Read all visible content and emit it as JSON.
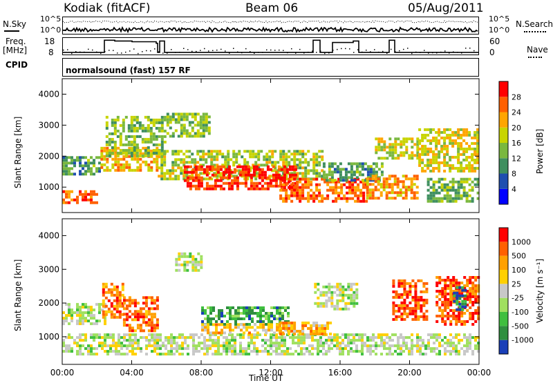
{
  "header": {
    "station": "Kodiak (fitACF)",
    "beam": "Beam 06",
    "date": "05/Aug/2011"
  },
  "summary_panels": {
    "nsky_label": "N.Sky",
    "nsearch_label": "N.Search",
    "nsky_ticks": [
      "10^5",
      "10^0"
    ],
    "nsearch_ticks": [
      "10^5",
      "10^0"
    ],
    "freq_label": "Freq.",
    "freq_unit": "[MHz]",
    "freq_ticks": [
      "18",
      "8"
    ],
    "nave_label": "Nave",
    "nave_ticks": [
      "60",
      "0"
    ],
    "cpid_label": "CPID",
    "cpid_value": "normalsound (fast) 157 RF"
  },
  "chart_data": [
    {
      "type": "heatmap",
      "name": "power",
      "ylabel": "Slant Range [km]",
      "ylim": [
        180,
        4500
      ],
      "yticks": [
        1000,
        2000,
        3000,
        4000
      ],
      "xlim": [
        0,
        24
      ],
      "xticks": [
        "00:00",
        "04:00",
        "08:00",
        "12:00",
        "16:00",
        "20:00",
        "00:00"
      ],
      "colorbar_label": "Power [dB]",
      "colorbar_ticks": [
        "28",
        "24",
        "20",
        "16",
        "12",
        "8",
        "4"
      ],
      "colorbar_colors": [
        "#0000ff",
        "#1f4fb0",
        "#3f8f5f",
        "#7ab83f",
        "#c8d400",
        "#ffa500",
        "#ff6000",
        "#ff0000"
      ],
      "regions": [
        {
          "t0": 0.0,
          "t1": 2.2,
          "r0": 1450,
          "r1": 2000,
          "level": 0.35
        },
        {
          "t0": 0.0,
          "t1": 2.0,
          "r0": 500,
          "r1": 900,
          "level": 0.85
        },
        {
          "t0": 2.2,
          "t1": 5.5,
          "r0": 1500,
          "r1": 2300,
          "level": 0.7
        },
        {
          "t0": 2.5,
          "t1": 6.0,
          "r0": 2000,
          "r1": 3300,
          "level": 0.45
        },
        {
          "t0": 6.0,
          "t1": 8.5,
          "r0": 2600,
          "r1": 3400,
          "level": 0.45
        },
        {
          "t0": 5.5,
          "t1": 15.0,
          "r0": 1300,
          "r1": 2200,
          "level": 0.5
        },
        {
          "t0": 7.0,
          "t1": 13.5,
          "r0": 900,
          "r1": 1700,
          "level": 0.95
        },
        {
          "t0": 12.5,
          "t1": 17.5,
          "r0": 500,
          "r1": 1300,
          "level": 0.85
        },
        {
          "t0": 15.0,
          "t1": 18.5,
          "r0": 1200,
          "r1": 1800,
          "level": 0.35
        },
        {
          "t0": 17.5,
          "t1": 20.5,
          "r0": 600,
          "r1": 1400,
          "level": 0.75
        },
        {
          "t0": 18.0,
          "t1": 20.5,
          "r0": 1900,
          "r1": 2600,
          "level": 0.55
        },
        {
          "t0": 20.5,
          "t1": 24.0,
          "r0": 1500,
          "r1": 2900,
          "level": 0.6
        },
        {
          "t0": 21.0,
          "t1": 24.0,
          "r0": 500,
          "r1": 1300,
          "level": 0.4
        }
      ]
    },
    {
      "type": "heatmap",
      "name": "velocity",
      "ylabel": "Slant Range [km]",
      "ylim": [
        180,
        4500
      ],
      "yticks": [
        1000,
        2000,
        3000,
        4000
      ],
      "xlim": [
        0,
        24
      ],
      "xticks": [
        "00:00",
        "04:00",
        "08:00",
        "12:00",
        "16:00",
        "20:00",
        "00:00"
      ],
      "xlabel": "Time UT",
      "colorbar_label": "Velocity [m s⁻¹]",
      "colorbar_ticks": [
        "1000",
        "500",
        "100",
        "25",
        "-25",
        "-100",
        "-500",
        "-1000"
      ],
      "colorbar_colors": [
        "#1a3fb8",
        "#2f8f3f",
        "#3fbf3f",
        "#a0e060",
        "#c8c8c8",
        "#ffd000",
        "#ffa000",
        "#ff6000",
        "#ff0000"
      ],
      "regions": [
        {
          "t0": 0.0,
          "t1": 24.0,
          "r0": 500,
          "r1": 1100,
          "level": 0.45
        },
        {
          "t0": 0.0,
          "t1": 2.5,
          "r0": 1400,
          "r1": 2000,
          "level": 0.45
        },
        {
          "t0": 2.3,
          "t1": 3.5,
          "r0": 1600,
          "r1": 2600,
          "level": 0.8
        },
        {
          "t0": 3.5,
          "t1": 5.5,
          "r0": 1200,
          "r1": 2200,
          "level": 0.85
        },
        {
          "t0": 6.5,
          "t1": 8.0,
          "r0": 3000,
          "r1": 3500,
          "level": 0.45
        },
        {
          "t0": 8.0,
          "t1": 13.0,
          "r0": 1400,
          "r1": 1900,
          "level": 0.2
        },
        {
          "t0": 8.0,
          "t1": 13.0,
          "r0": 1150,
          "r1": 1400,
          "level": 0.65
        },
        {
          "t0": 12.5,
          "t1": 15.5,
          "r0": 1100,
          "r1": 1450,
          "level": 0.7
        },
        {
          "t0": 14.5,
          "t1": 17.0,
          "r0": 1800,
          "r1": 2600,
          "level": 0.45
        },
        {
          "t0": 19.0,
          "t1": 21.0,
          "r0": 1500,
          "r1": 2700,
          "level": 0.9
        },
        {
          "t0": 21.5,
          "t1": 24.0,
          "r0": 1400,
          "r1": 2800,
          "level": 0.9
        },
        {
          "t0": 22.5,
          "t1": 23.2,
          "r0": 1800,
          "r1": 2500,
          "level": 0.05
        }
      ]
    }
  ]
}
